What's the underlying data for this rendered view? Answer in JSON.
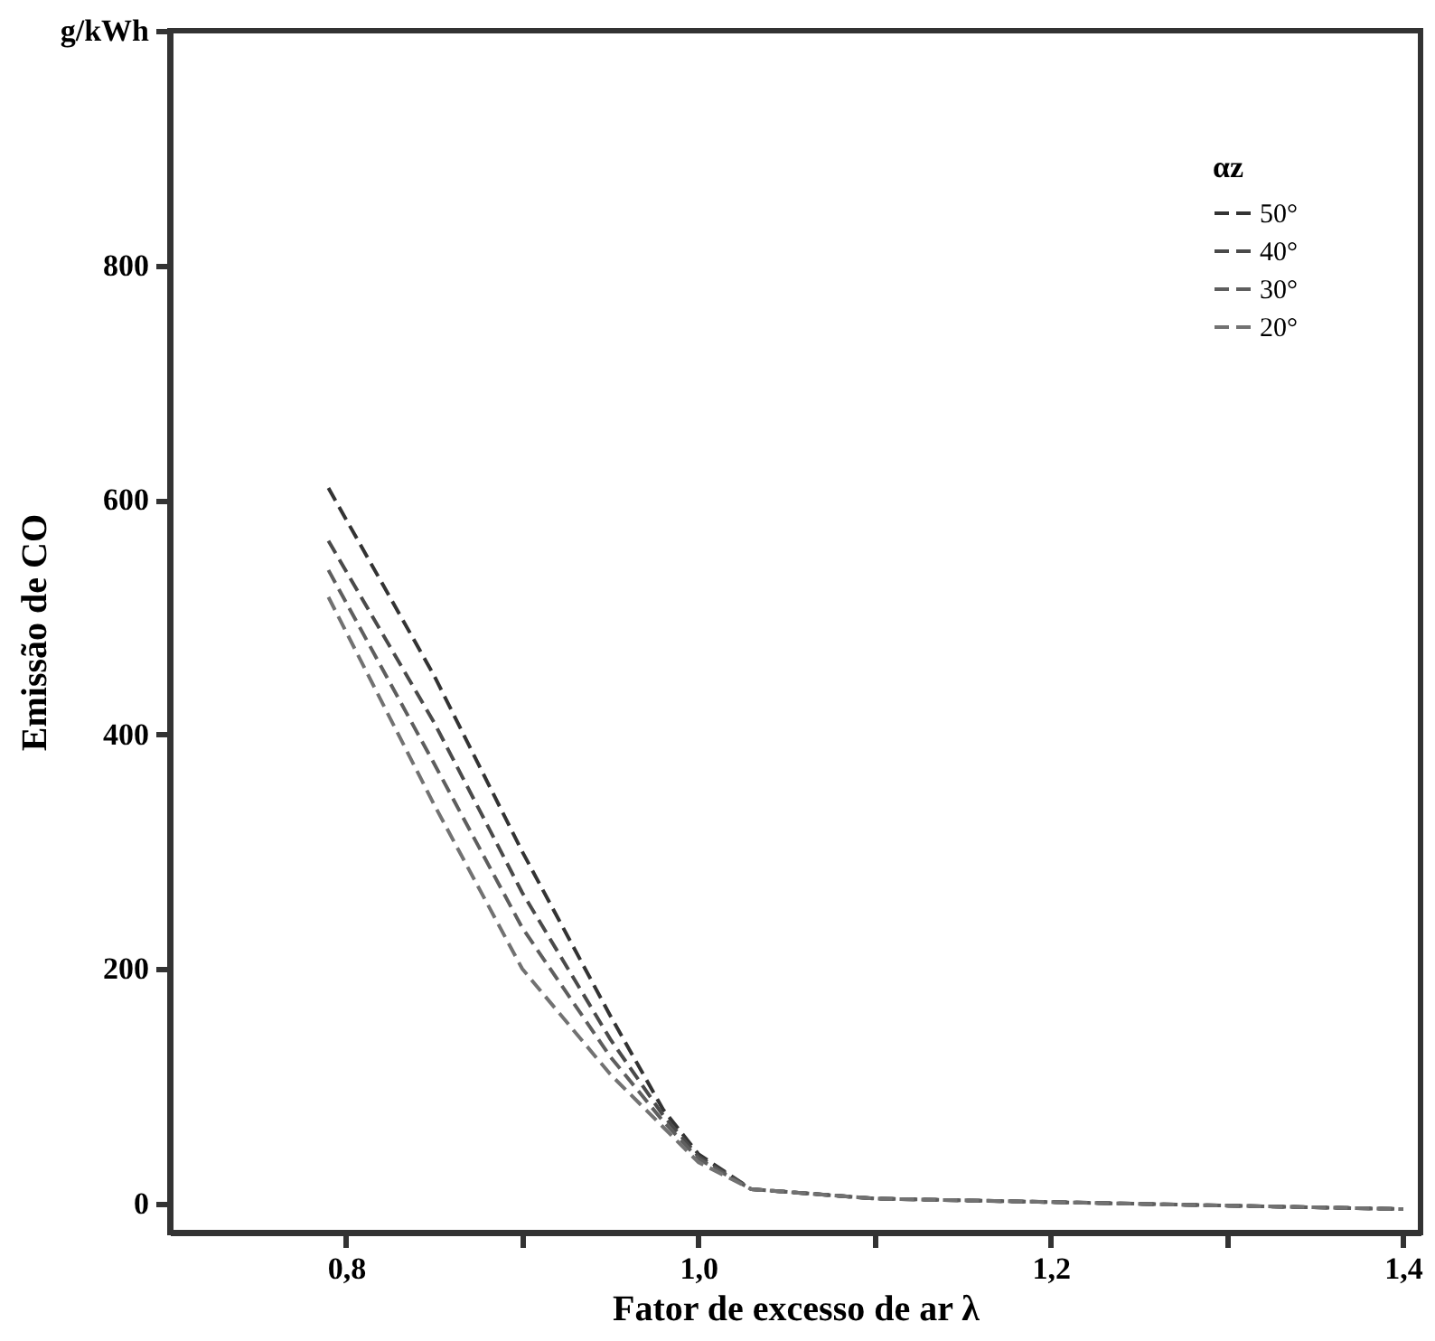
{
  "chart_data": {
    "type": "line",
    "xlabel": "Fator de excesso de ar λ",
    "ylabel": "Emissão de CO",
    "legend_title": "αz",
    "legend": "top right",
    "line_style": "dashed",
    "marker": "none",
    "grid": false,
    "xlim": [
      0.7,
      1.41
    ],
    "ylim": [
      -25,
      1000
    ],
    "xticks": [
      {
        "value": 0.8,
        "label": "0,8"
      },
      {
        "value": 0.9,
        "label": null
      },
      {
        "value": 1.0,
        "label": "1,0"
      },
      {
        "value": 1.1,
        "label": null
      },
      {
        "value": 1.2,
        "label": "1,2"
      },
      {
        "value": 1.3,
        "label": null
      },
      {
        "value": 1.4,
        "label": "1,4"
      }
    ],
    "yticks": [
      0,
      200,
      400,
      600,
      800,
      {
        "value": 1000,
        "label": "g/kWh"
      }
    ],
    "x": [
      0.79,
      0.85,
      0.9,
      0.95,
      0.98,
      1.0,
      1.03,
      1.1,
      1.2,
      1.3,
      1.4
    ],
    "series": [
      {
        "name": "50°",
        "color": "#333333",
        "values": [
          610,
          450,
          300,
          160,
          80,
          42,
          12,
          4,
          1,
          -2,
          -5
        ]
      },
      {
        "name": "40°",
        "color": "#4a4a4a",
        "values": [
          565,
          410,
          265,
          140,
          75,
          40,
          12,
          4,
          1,
          -2,
          -5
        ]
      },
      {
        "name": "30°",
        "color": "#5e5e5e",
        "values": [
          540,
          375,
          235,
          125,
          70,
          38,
          12,
          4,
          1,
          -2,
          -5
        ]
      },
      {
        "name": "20°",
        "color": "#727272",
        "values": [
          517,
          340,
          200,
          110,
          65,
          35,
          12,
          4,
          1,
          -2,
          -5
        ]
      }
    ]
  }
}
